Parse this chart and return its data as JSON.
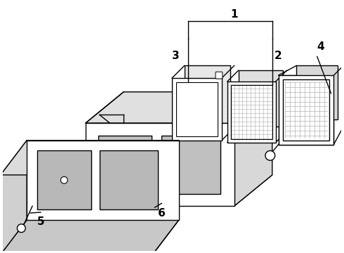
{
  "background_color": "#ffffff",
  "line_color": "#000000",
  "figsize": [
    4.9,
    3.6
  ],
  "dpi": 100,
  "label_fontsize": 11
}
